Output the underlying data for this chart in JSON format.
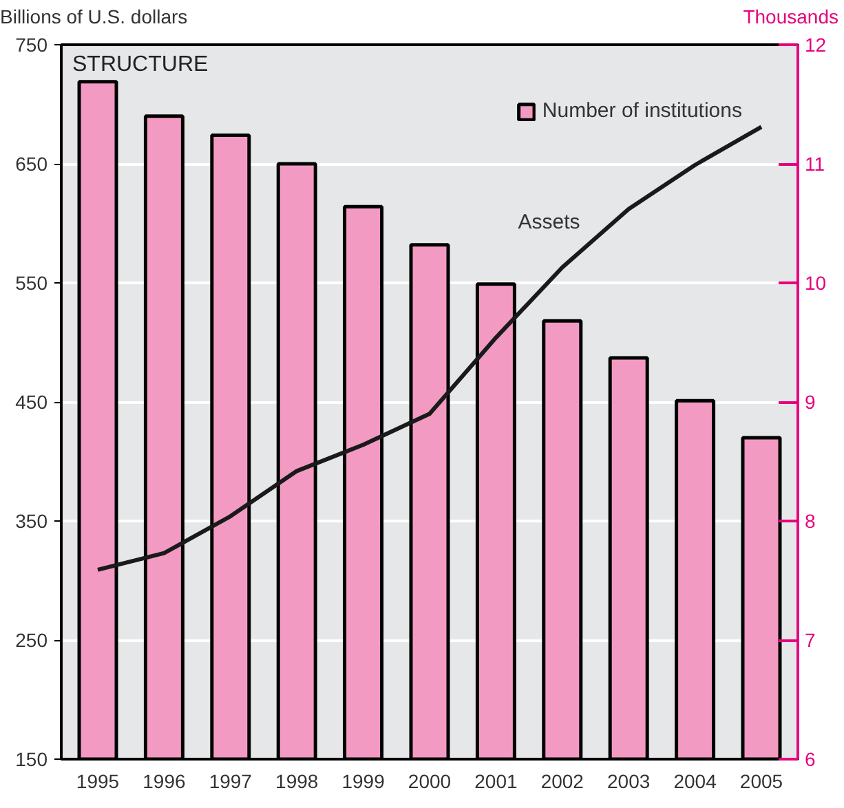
{
  "chart_data": {
    "type": "bar",
    "title": "STRUCTURE",
    "ylabel": "Billions of U.S. dollars",
    "y2label": "Thousands",
    "categories": [
      "1995",
      "1996",
      "1997",
      "1998",
      "1999",
      "2000",
      "2001",
      "2002",
      "2003",
      "2004",
      "2005"
    ],
    "series": [
      {
        "name": "Number of institutions",
        "axis": "y2",
        "color": "#f39ac3",
        "values": [
          11.69,
          11.4,
          11.24,
          11.0,
          10.64,
          10.32,
          9.99,
          9.68,
          9.37,
          9.01,
          8.7
        ]
      },
      {
        "name": "Assets",
        "type": "line",
        "color": "#1a1a1a",
        "values": [
          309,
          323,
          354,
          392,
          414,
          440,
          504,
          563,
          612,
          649,
          681
        ]
      }
    ],
    "ylim": [
      150,
      750
    ],
    "yticks": [
      150,
      250,
      350,
      450,
      550,
      650,
      750
    ],
    "y2lim": [
      6,
      12
    ],
    "y2ticks": [
      6,
      7,
      8,
      9,
      10,
      11,
      12
    ],
    "grid": "y",
    "legend": "top right",
    "marker": "none",
    "line_style": "solid"
  }
}
